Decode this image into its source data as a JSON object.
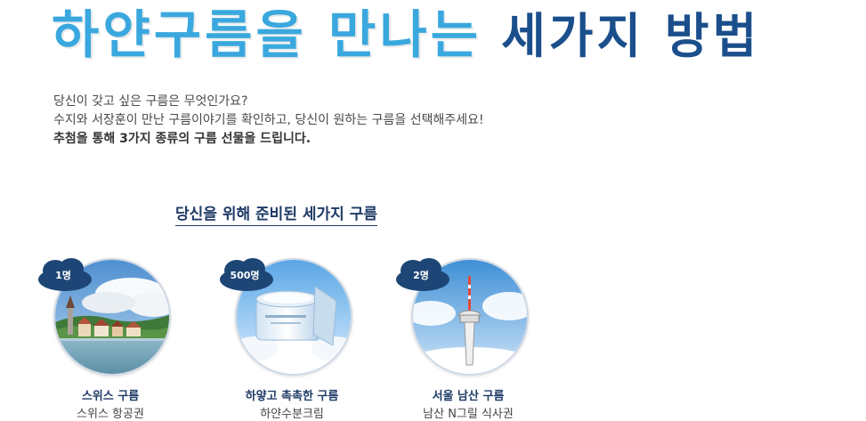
{
  "headline": {
    "part1": "하얀구름을 만나는",
    "part2": "세가지 방법"
  },
  "intro": {
    "line1": "당신이 갖고 싶은 구름은 무엇인가요?",
    "line2": "수지와 서장훈이 만난 구름이야기를 확인하고, 당신이 원하는 구름을 선택해주세요!",
    "line3": "추첨을 통해 3가지 종류의 구름 선물을 드립니다."
  },
  "section_title": "당신을 위해 준비된 세가지 구름",
  "prizes": [
    {
      "count": "1명",
      "name": "스위스 구름",
      "desc": "스위스 항공권",
      "image": "swiss-lake-town"
    },
    {
      "count": "500명",
      "name": "하얗고 촉촉한 구름",
      "desc": "하얀수분크림",
      "image": "moisture-cream-jar"
    },
    {
      "count": "2명",
      "name": "서울 남산 구름",
      "desc": "남산 N그릴 식사권",
      "image": "namsan-tower"
    }
  ],
  "colors": {
    "headline_light_blue": "#3aa8de",
    "headline_dark_blue": "#1b4f8c",
    "badge_navy": "#1d4676",
    "title_navy": "#1f3b66"
  }
}
